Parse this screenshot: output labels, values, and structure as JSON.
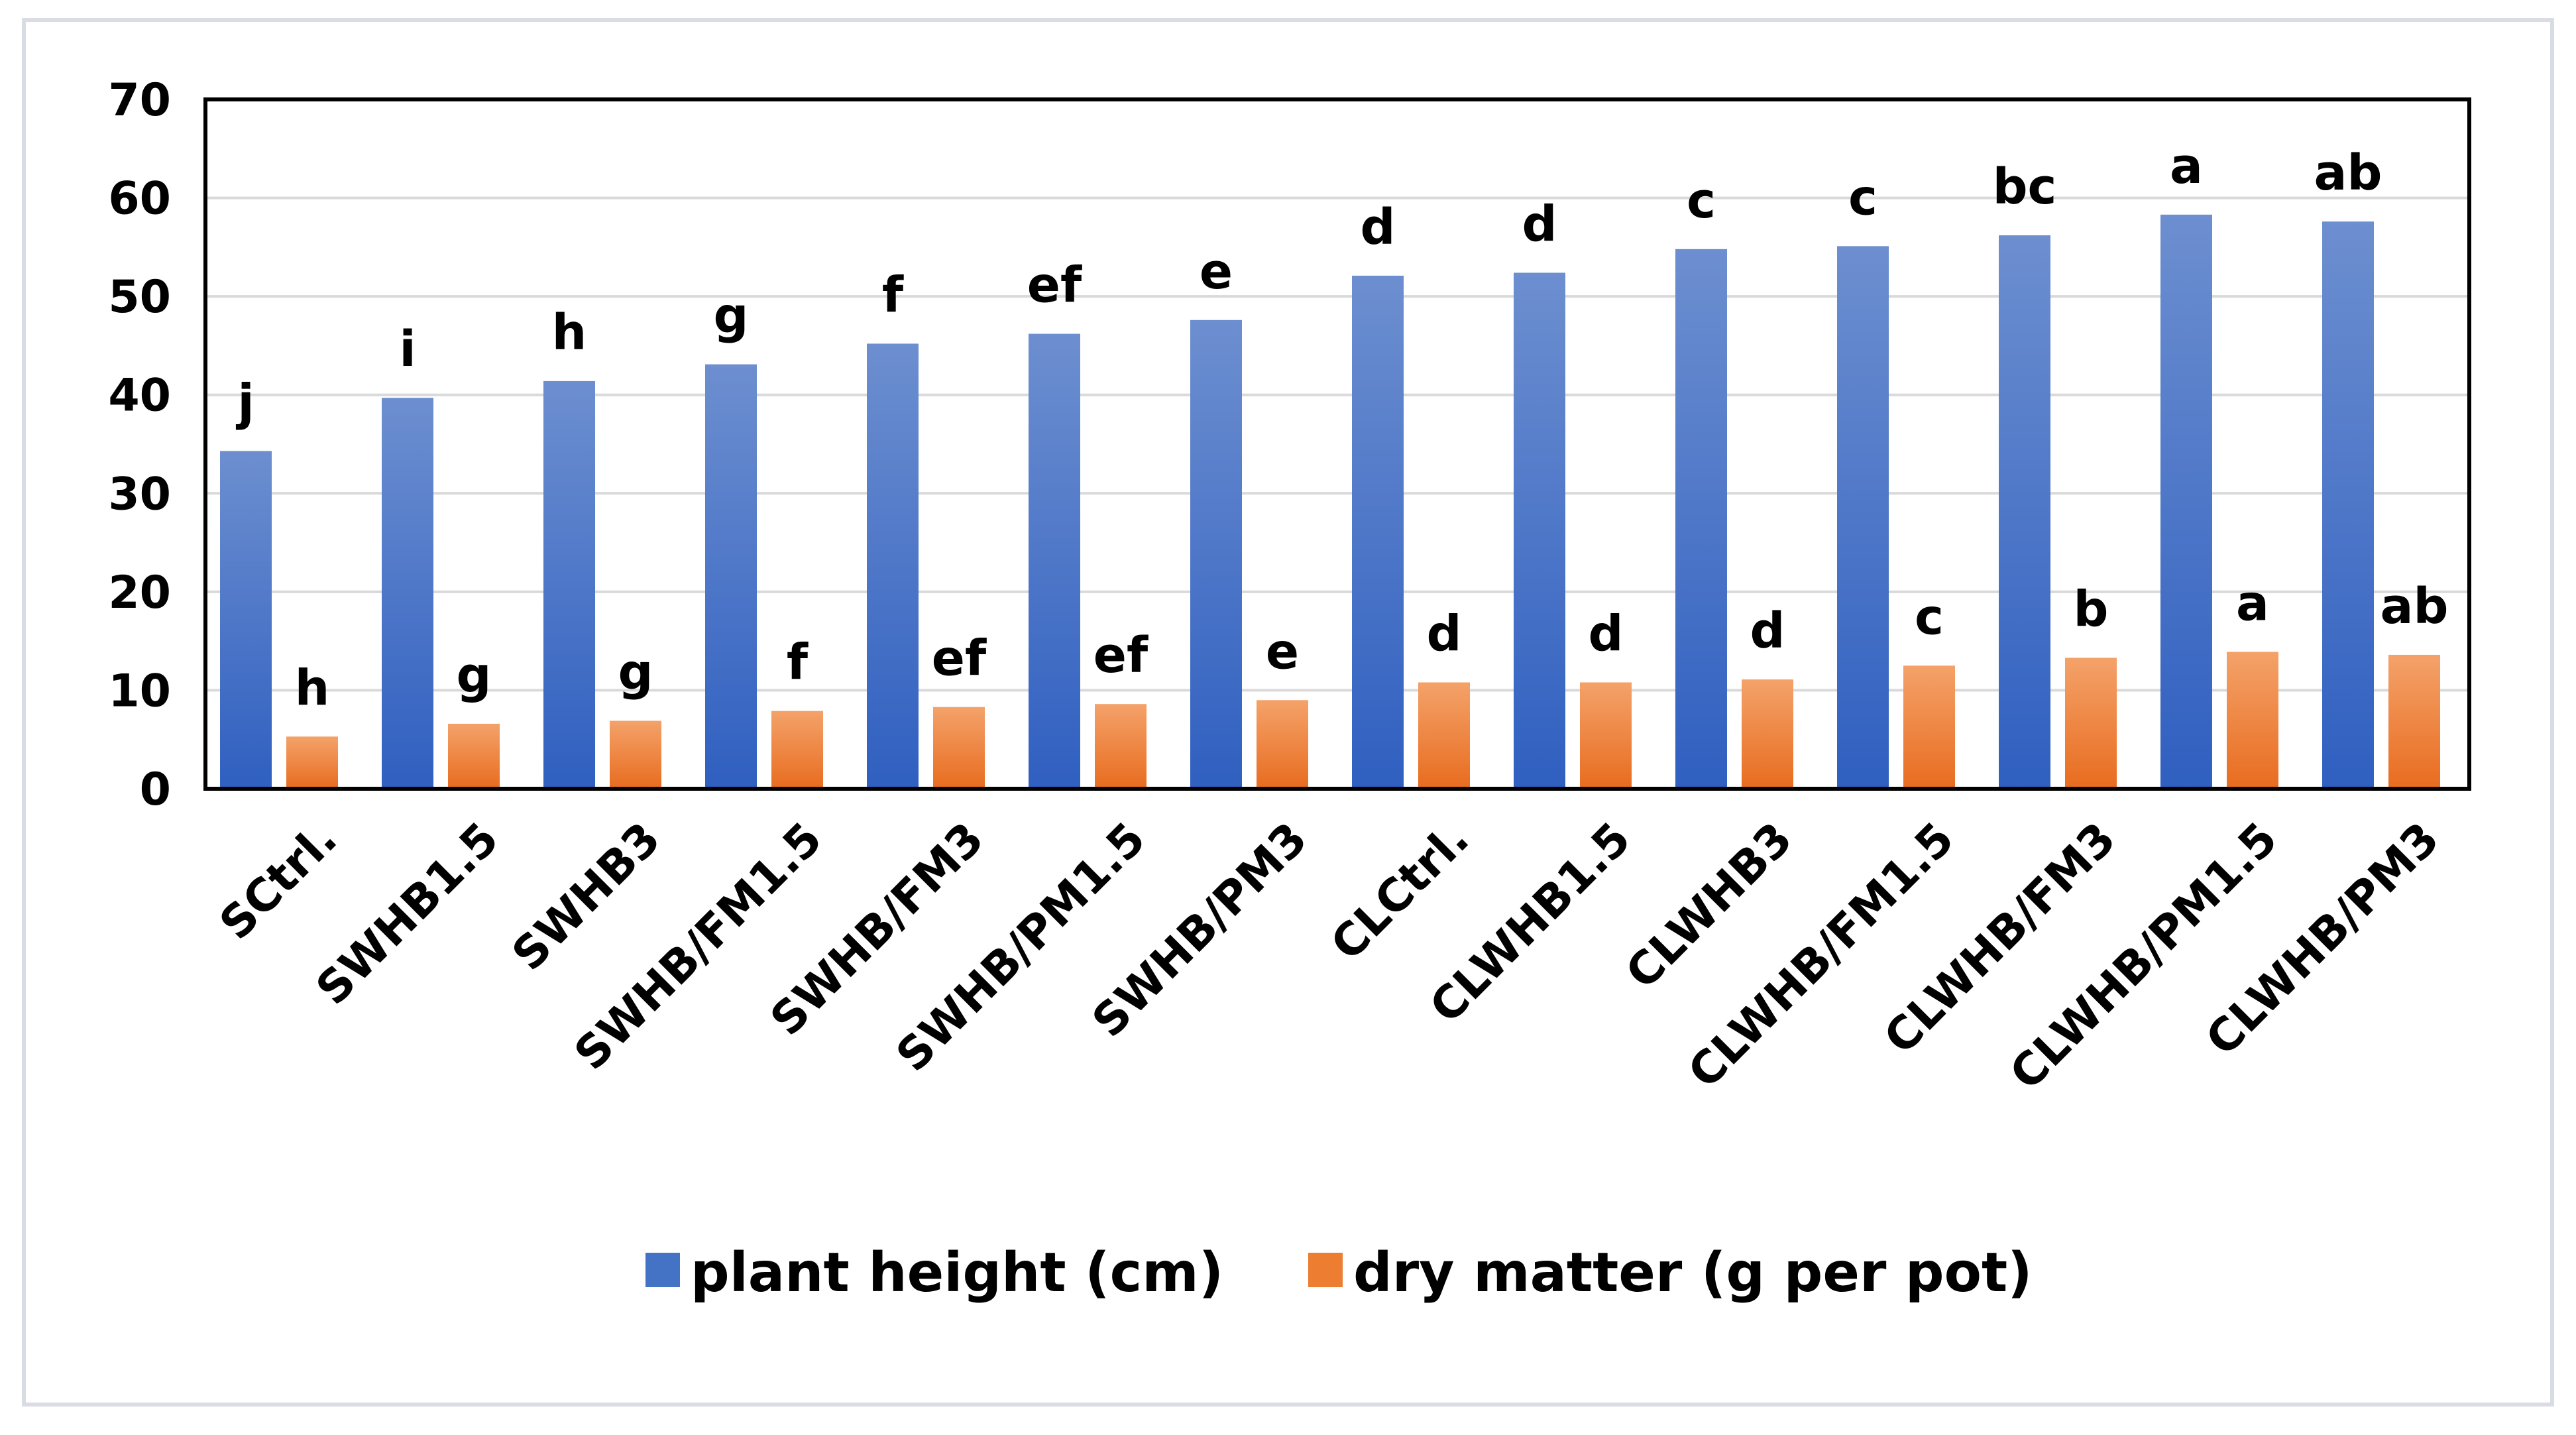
{
  "chart_data": {
    "type": "bar",
    "title": "",
    "xlabel": "",
    "ylabel": "",
    "ylim": [
      0,
      70
    ],
    "yticks": [
      0,
      10,
      20,
      30,
      40,
      50,
      60,
      70
    ],
    "grid": true,
    "legend_position": "bottom",
    "categories": [
      "SCtrl.",
      "SWHB1.5",
      "SWHB3",
      "SWHB/FM1.5",
      "SWHB/FM3",
      "SWHB/PM1.5",
      "SWHB/PM3",
      "CLCtrl.",
      "CLWHB1.5",
      "CLWHB3",
      "CLWHB/FM1.5",
      "CLWHB/FM3",
      "CLWHB/PM1.5",
      "CLWHB/PM3"
    ],
    "series": [
      {
        "name": "plant height (cm)",
        "color": "#4472c4",
        "values": [
          34.3,
          39.7,
          41.4,
          43.1,
          45.2,
          46.2,
          47.6,
          52.1,
          52.4,
          54.8,
          55.1,
          56.2,
          58.3,
          57.6
        ],
        "labels": [
          "j",
          "i",
          "h",
          "g",
          "f",
          "ef",
          "e",
          "d",
          "d",
          "c",
          "c",
          "bc",
          "a",
          "ab"
        ]
      },
      {
        "name": "dry matter (g per pot)",
        "color": "#ed7d31",
        "values": [
          5.3,
          6.6,
          6.9,
          7.9,
          8.3,
          8.6,
          9.0,
          10.8,
          10.8,
          11.1,
          12.5,
          13.3,
          13.9,
          13.6
        ],
        "labels": [
          "h",
          "g",
          "g",
          "f",
          "ef",
          "ef",
          "e",
          "d",
          "d",
          "d",
          "c",
          "b",
          "a",
          "ab"
        ]
      }
    ]
  }
}
